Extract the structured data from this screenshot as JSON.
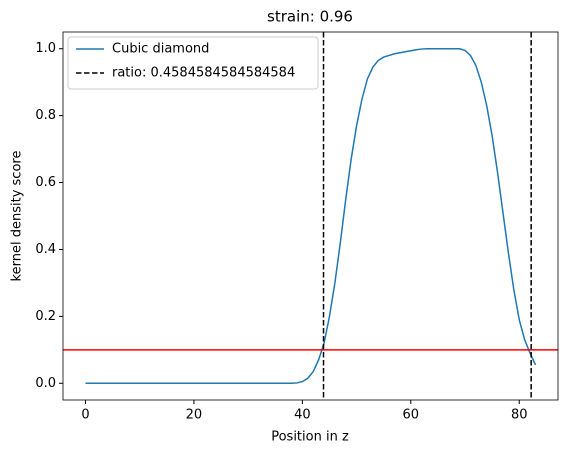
{
  "chart_data": {
    "type": "line",
    "title": "strain: 0.96",
    "xlabel": "Position in z",
    "ylabel": "kernel density score",
    "x": [
      0,
      5,
      10,
      15,
      20,
      25,
      30,
      35,
      38,
      39,
      40,
      41,
      42,
      43,
      44,
      45,
      46,
      47,
      48,
      49,
      50,
      51,
      52,
      53,
      54,
      55,
      56,
      57,
      58,
      59,
      60,
      61,
      62,
      63,
      64,
      65,
      66,
      67,
      68,
      69,
      70,
      71,
      72,
      73,
      74,
      75,
      76,
      77,
      78,
      79,
      80,
      81,
      82,
      83
    ],
    "series": [
      {
        "name": "Cubic diamond",
        "color": "#1f77b4",
        "values": [
          0,
          0,
          0,
          0,
          0,
          0,
          0,
          0,
          0,
          0.001,
          0.005,
          0.015,
          0.035,
          0.07,
          0.12,
          0.2,
          0.3,
          0.42,
          0.55,
          0.67,
          0.77,
          0.85,
          0.91,
          0.945,
          0.965,
          0.975,
          0.98,
          0.985,
          0.988,
          0.991,
          0.994,
          0.997,
          0.999,
          1.0,
          1.0,
          1.0,
          1.0,
          1.0,
          1.0,
          1.0,
          0.995,
          0.98,
          0.95,
          0.9,
          0.83,
          0.74,
          0.63,
          0.51,
          0.39,
          0.28,
          0.19,
          0.13,
          0.09,
          0.055
        ]
      }
    ],
    "vlines": {
      "name": "ratio: 0.4584584584584584",
      "color": "#000000",
      "values": [
        43.9,
        82.2
      ]
    },
    "hline": {
      "value": 0.1,
      "color": "#ff0000"
    },
    "xlim": [
      -4.15,
      87.15
    ],
    "ylim": [
      -0.05,
      1.05
    ],
    "xticks": [
      0,
      20,
      40,
      60,
      80
    ],
    "yticks": [
      {
        "value": 0,
        "label": "0.0"
      },
      {
        "value": 0.2,
        "label": "0.2"
      },
      {
        "value": 0.4,
        "label": "0.4"
      },
      {
        "value": 0.6,
        "label": "0.6"
      },
      {
        "value": 0.8,
        "label": "0.8"
      },
      {
        "value": 1,
        "label": "1.0"
      }
    ],
    "legend": "upper left"
  }
}
